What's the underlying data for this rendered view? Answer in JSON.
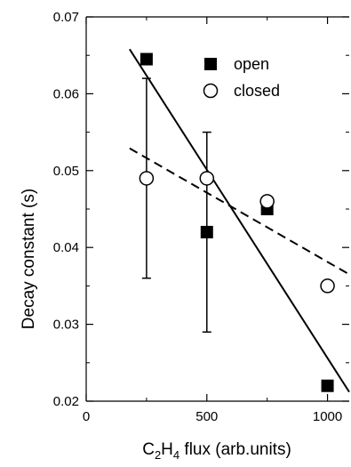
{
  "chart_data": {
    "type": "scatter",
    "xlabel": {
      "prefix": "C",
      "sub1": "2",
      "mid": "H",
      "sub2": "4",
      "suffix": " flux (arb.units)"
    },
    "ylabel": "Decay constant (s)",
    "xlim": [
      0,
      1090
    ],
    "ylim": [
      0.02,
      0.07
    ],
    "x_ticks": [
      0,
      500,
      1000
    ],
    "y_ticks": [
      0.02,
      0.03,
      0.04,
      0.05,
      0.06,
      0.07
    ],
    "y_tick_labels": [
      "0.02",
      "0.03",
      "0.04",
      "0.05",
      "0.06",
      "0.07"
    ],
    "x_tick_labels": [
      "0",
      "500",
      "1000"
    ],
    "legend_position": "top-right",
    "grid": false,
    "series": [
      {
        "name": "open",
        "marker": "filled-square",
        "color": "#000000",
        "points": [
          {
            "x": 250,
            "y": 0.0645
          },
          {
            "x": 500,
            "y": 0.042
          },
          {
            "x": 750,
            "y": 0.045
          },
          {
            "x": 1000,
            "y": 0.022
          }
        ],
        "fit": {
          "style": "solid",
          "x": [
            180,
            1090
          ],
          "y": [
            0.0658,
            0.0212
          ]
        }
      },
      {
        "name": "closed",
        "marker": "open-circle",
        "color": "#000000",
        "points": [
          {
            "x": 250,
            "y": 0.049
          },
          {
            "x": 500,
            "y": 0.049
          },
          {
            "x": 750,
            "y": 0.046
          },
          {
            "x": 1000,
            "y": 0.035
          }
        ],
        "fit": {
          "style": "dashed",
          "x": [
            180,
            1090
          ],
          "y": [
            0.0529,
            0.0365
          ]
        }
      }
    ],
    "error_bars": [
      {
        "x": 250,
        "low": 0.036,
        "high": 0.062
      },
      {
        "x": 500,
        "low": 0.029,
        "high": 0.055
      }
    ]
  }
}
